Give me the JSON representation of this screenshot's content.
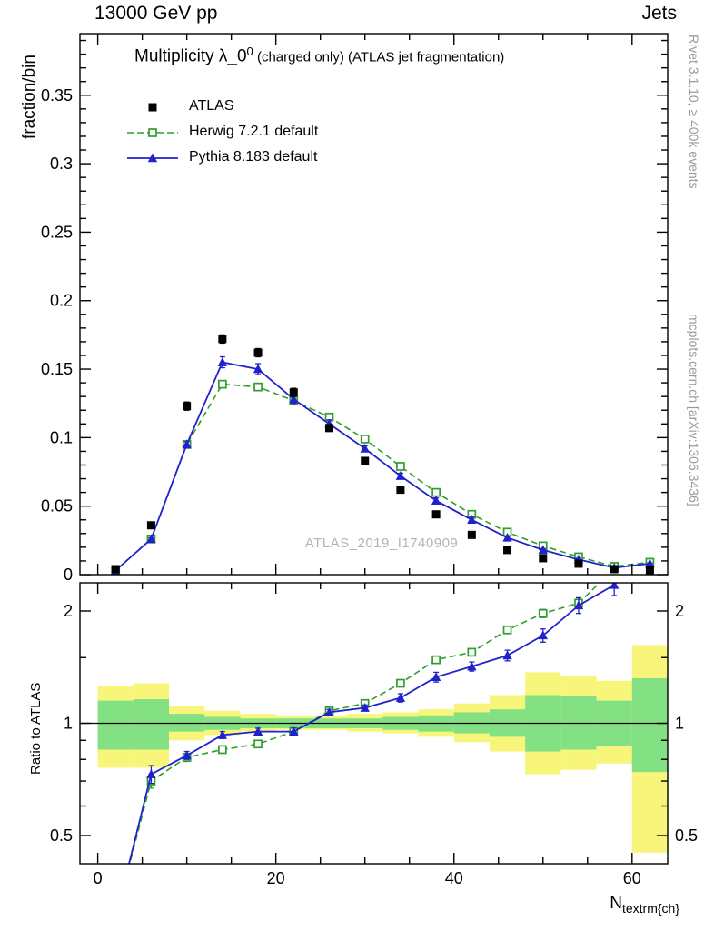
{
  "header": {
    "left": "13000 GeV pp",
    "right": "Jets"
  },
  "title": {
    "pre": "Multiplicity λ_0",
    "sup": "0",
    "post": " (charged only) (ATLAS jet fragmentation)"
  },
  "legend": [
    {
      "label": "ATLAS"
    },
    {
      "label": "Herwig 7.2.1 default"
    },
    {
      "label": "Pythia 8.183 default"
    }
  ],
  "side_notes": {
    "top": "Rivet 3.1.10, ≥ 400k events",
    "bottom": "mcplots.cern.ch [arXiv:1306.3436]"
  },
  "axes": {
    "main_ylabel": "fraction/bin",
    "ratio_ylabel": "Ratio to ATLAS",
    "xlabel_main": "N",
    "xlabel_sub": "textrm{ch}"
  },
  "colors": {
    "atlas": "#000000",
    "herwig": "#2f9e2f",
    "pythia": "#2222cc",
    "band_yellow": "#f7f67a",
    "band_green": "#83e083",
    "gray_text": "#9a9a9a"
  },
  "chart_data": {
    "type": "line",
    "title": "Multiplicity λ_0^0 (charged only) (ATLAS jet fragmentation)",
    "xlabel": "N_ch",
    "xlim": [
      -2,
      64
    ],
    "xticks": [
      {
        "v": 0,
        "label": "0"
      },
      {
        "v": 20,
        "label": "20"
      },
      {
        "v": 40,
        "label": "40"
      },
      {
        "v": 60,
        "label": "60"
      }
    ],
    "bin_edges": [
      0,
      4,
      8,
      12,
      16,
      20,
      24,
      28,
      32,
      36,
      40,
      44,
      48,
      52,
      56,
      60,
      64
    ],
    "x_centers": [
      2,
      6,
      10,
      14,
      18,
      22,
      26,
      30,
      34,
      38,
      42,
      46,
      50,
      54,
      58,
      62
    ],
    "main_panel": {
      "ylabel": "fraction/bin",
      "ylim": [
        0,
        0.395
      ],
      "yticks": [
        {
          "v": 0,
          "label": "0"
        },
        {
          "v": 0.05,
          "label": "0.05"
        },
        {
          "v": 0.1,
          "label": "0.1"
        },
        {
          "v": 0.15,
          "label": "0.15"
        },
        {
          "v": 0.2,
          "label": "0.2"
        },
        {
          "v": 0.25,
          "label": "0.25"
        },
        {
          "v": 0.3,
          "label": "0.3"
        },
        {
          "v": 0.35,
          "label": "0.35"
        }
      ],
      "watermark": "ATLAS_2019_I1740909",
      "series": [
        {
          "name": "ATLAS",
          "style": "points",
          "marker": "filled-square",
          "color_key": "atlas",
          "values": [
            0.004,
            0.036,
            0.123,
            0.172,
            0.162,
            0.133,
            0.107,
            0.083,
            0.062,
            0.044,
            0.029,
            0.018,
            0.012,
            0.008,
            0.004,
            0.003
          ],
          "errors": [
            0.001,
            0.002,
            0.003,
            0.003,
            0.003,
            0.003,
            0.002,
            0.002,
            0.002,
            0.002,
            0.002,
            0.001,
            0.001,
            0.001,
            0.001,
            0.001
          ]
        },
        {
          "name": "Herwig 7.2.1 default",
          "style": "dashed-line",
          "marker": "open-square",
          "color_key": "herwig",
          "values": [
            0.003,
            0.026,
            0.095,
            0.139,
            0.137,
            0.127,
            0.115,
            0.099,
            0.079,
            0.06,
            0.044,
            0.031,
            0.021,
            0.013,
            0.006,
            0.009
          ],
          "errors": [
            0.0005,
            0.001,
            0.001,
            0.002,
            0.002,
            0.002,
            0.002,
            0.001,
            0.001,
            0.001,
            0.001,
            0.001,
            0.001,
            0.001,
            0.0005,
            0.0005
          ]
        },
        {
          "name": "Pythia 8.183 default",
          "style": "solid-line",
          "marker": "filled-triangle",
          "color_key": "pythia",
          "values": [
            0.003,
            0.026,
            0.095,
            0.155,
            0.15,
            0.128,
            0.11,
            0.092,
            0.072,
            0.054,
            0.04,
            0.027,
            0.018,
            0.011,
            0.005,
            0.008
          ],
          "errors": [
            0.0005,
            0.001,
            0.002,
            0.004,
            0.004,
            0.003,
            0.003,
            0.002,
            0.002,
            0.002,
            0.002,
            0.001,
            0.001,
            0.001,
            0.0005,
            0.0005
          ]
        }
      ]
    },
    "ratio_panel": {
      "ylabel": "Ratio to ATLAS",
      "scale": "log",
      "ylim": [
        0.42,
        2.37
      ],
      "reference_line": 1,
      "yticks": [
        {
          "v": 0.5,
          "label": "0.5"
        },
        {
          "v": 1,
          "label": "1"
        },
        {
          "v": 2,
          "label": "2"
        }
      ],
      "bands": {
        "yellow": [
          [
            0.76,
            1.26
          ],
          [
            0.76,
            1.28
          ],
          [
            0.9,
            1.11
          ],
          [
            0.93,
            1.08
          ],
          [
            0.95,
            1.06
          ],
          [
            0.96,
            1.05
          ],
          [
            0.96,
            1.05
          ],
          [
            0.95,
            1.06
          ],
          [
            0.94,
            1.07
          ],
          [
            0.92,
            1.09
          ],
          [
            0.89,
            1.13
          ],
          [
            0.84,
            1.19
          ],
          [
            0.73,
            1.37
          ],
          [
            0.75,
            1.34
          ],
          [
            0.78,
            1.3
          ],
          [
            0.45,
            1.62
          ]
        ],
        "green": [
          [
            0.85,
            1.15
          ],
          [
            0.85,
            1.16
          ],
          [
            0.95,
            1.06
          ],
          [
            0.96,
            1.04
          ],
          [
            0.97,
            1.03
          ],
          [
            0.97,
            1.03
          ],
          [
            0.97,
            1.03
          ],
          [
            0.97,
            1.03
          ],
          [
            0.96,
            1.04
          ],
          [
            0.95,
            1.05
          ],
          [
            0.94,
            1.07
          ],
          [
            0.92,
            1.09
          ],
          [
            0.84,
            1.19
          ],
          [
            0.85,
            1.18
          ],
          [
            0.87,
            1.15
          ],
          [
            0.74,
            1.32
          ]
        ]
      },
      "series": [
        {
          "name": "Herwig 7.2.1 default",
          "style": "dashed-line",
          "marker": "open-square",
          "color_key": "herwig",
          "values": [
            0.3,
            0.7,
            0.81,
            0.85,
            0.88,
            0.95,
            1.08,
            1.13,
            1.28,
            1.48,
            1.55,
            1.78,
            1.97,
            2.1,
            2.6,
            3.2
          ],
          "errors": [
            0,
            0.03,
            0.02,
            0.015,
            0.015,
            0.015,
            0.015,
            0.02,
            0.02,
            0.03,
            0.03,
            0.04,
            0.05,
            0.07,
            0,
            0
          ]
        },
        {
          "name": "Pythia 8.183 default",
          "style": "solid-line",
          "marker": "filled-triangle",
          "color_key": "pythia",
          "values": [
            0.3,
            0.73,
            0.82,
            0.93,
            0.95,
            0.95,
            1.07,
            1.1,
            1.17,
            1.33,
            1.42,
            1.52,
            1.72,
            2.07,
            2.35,
            3.0
          ],
          "errors": [
            0,
            0.04,
            0.02,
            0.02,
            0.02,
            0.02,
            0.02,
            0.02,
            0.03,
            0.04,
            0.04,
            0.05,
            0.07,
            0.1,
            0.15,
            0
          ]
        }
      ]
    }
  }
}
